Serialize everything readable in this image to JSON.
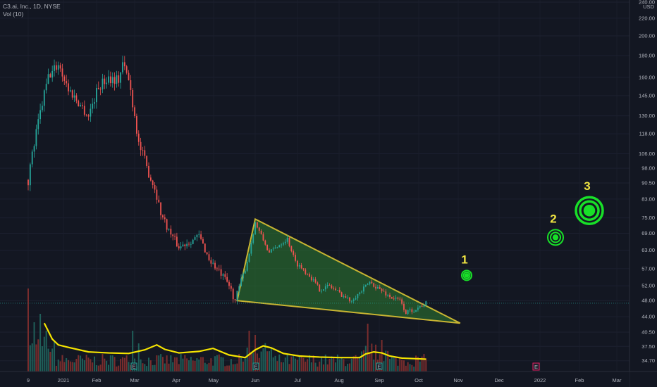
{
  "legend": {
    "symbol_line": "C3.ai, Inc., 1D, NYSE",
    "volume_line": "Vol (10)"
  },
  "currency": "USD",
  "last_price": "47.33",
  "colors": {
    "background": "#131722",
    "up": "#26a69a",
    "down": "#ef5350",
    "triangle_fill": "#2e7d32",
    "triangle_stroke": "#c8b432",
    "volume_ma": "#f5e400",
    "target": "#18e028",
    "target_label": "#f0e442",
    "last_price_bg": "#26a69a",
    "earnings_marker": "#26a69a",
    "future_marker": "#e91e63"
  },
  "event_markers": {
    "earnings_label": "E",
    "future_label": "E"
  },
  "targets": [
    {
      "label": "1",
      "price": 55.0
    },
    {
      "label": "2",
      "price": 67.5
    },
    {
      "label": "3",
      "price": 78.0
    }
  ],
  "chart_data": {
    "type": "candlestick",
    "symbol": "C3.ai, Inc., 1D, NYSE",
    "y_scale": "log",
    "ylim": [
      33.5,
      240
    ],
    "price_ticks": [
      240,
      220,
      200,
      180,
      160,
      145,
      130,
      118,
      106,
      98,
      90.5,
      83,
      75,
      69,
      63,
      57,
      52,
      48,
      44,
      40.5,
      37.5,
      34.7
    ],
    "x_ticks": [
      "9",
      "2021",
      "Feb",
      "Mar",
      "Apr",
      "May",
      "Jun",
      "Jul",
      "Aug",
      "Sep",
      "Oct",
      "Nov",
      "Dec",
      "2022",
      "Feb",
      "Mar"
    ],
    "price_path": [
      [
        0,
        92
      ],
      [
        5,
        125
      ],
      [
        10,
        160
      ],
      [
        15,
        172
      ],
      [
        20,
        150
      ],
      [
        25,
        140
      ],
      [
        30,
        130
      ],
      [
        35,
        152
      ],
      [
        40,
        160
      ],
      [
        45,
        158
      ],
      [
        47,
        172
      ],
      [
        50,
        158
      ],
      [
        55,
        112
      ],
      [
        60,
        95
      ],
      [
        63,
        88
      ],
      [
        66,
        77
      ],
      [
        70,
        70
      ],
      [
        75,
        64
      ],
      [
        80,
        66
      ],
      [
        85,
        68
      ],
      [
        90,
        60
      ],
      [
        95,
        56
      ],
      [
        100,
        52
      ],
      [
        103,
        48
      ],
      [
        107,
        55
      ],
      [
        110,
        62
      ],
      [
        113,
        73
      ],
      [
        116,
        68
      ],
      [
        120,
        62
      ],
      [
        125,
        65
      ],
      [
        129,
        67
      ],
      [
        133,
        59
      ],
      [
        140,
        55
      ],
      [
        145,
        51
      ],
      [
        150,
        52
      ],
      [
        155,
        50
      ],
      [
        160,
        48
      ],
      [
        165,
        50
      ],
      [
        170,
        53
      ],
      [
        175,
        51
      ],
      [
        180,
        49
      ],
      [
        185,
        48
      ],
      [
        188,
        45
      ],
      [
        193,
        46
      ],
      [
        198,
        47.3
      ]
    ],
    "triangle_pattern": [
      {
        "bar": 104,
        "price": 48.0
      },
      {
        "bar": 113,
        "price": 74.5
      },
      {
        "bar": 215,
        "price": 42.5
      }
    ],
    "volume_ma_path": [
      [
        8,
        42.5
      ],
      [
        12,
        39.0
      ],
      [
        15,
        37.8
      ],
      [
        20,
        37.3
      ],
      [
        30,
        36.4
      ],
      [
        40,
        36.2
      ],
      [
        50,
        36.1
      ],
      [
        58,
        36.8
      ],
      [
        64,
        37.8
      ],
      [
        68,
        36.9
      ],
      [
        75,
        36.2
      ],
      [
        85,
        36.5
      ],
      [
        92,
        37.1
      ],
      [
        100,
        35.8
      ],
      [
        108,
        35.3
      ],
      [
        113,
        36.8
      ],
      [
        117,
        37.6
      ],
      [
        121,
        37.2
      ],
      [
        127,
        36.1
      ],
      [
        135,
        35.6
      ],
      [
        145,
        35.4
      ],
      [
        155,
        35.3
      ],
      [
        165,
        35.3
      ],
      [
        168,
        36.0
      ],
      [
        172,
        36.4
      ],
      [
        176,
        36.2
      ],
      [
        180,
        35.6
      ],
      [
        186,
        35.2
      ],
      [
        192,
        35.1
      ],
      [
        198,
        35.0
      ]
    ],
    "volume_ma_length": 10
  }
}
